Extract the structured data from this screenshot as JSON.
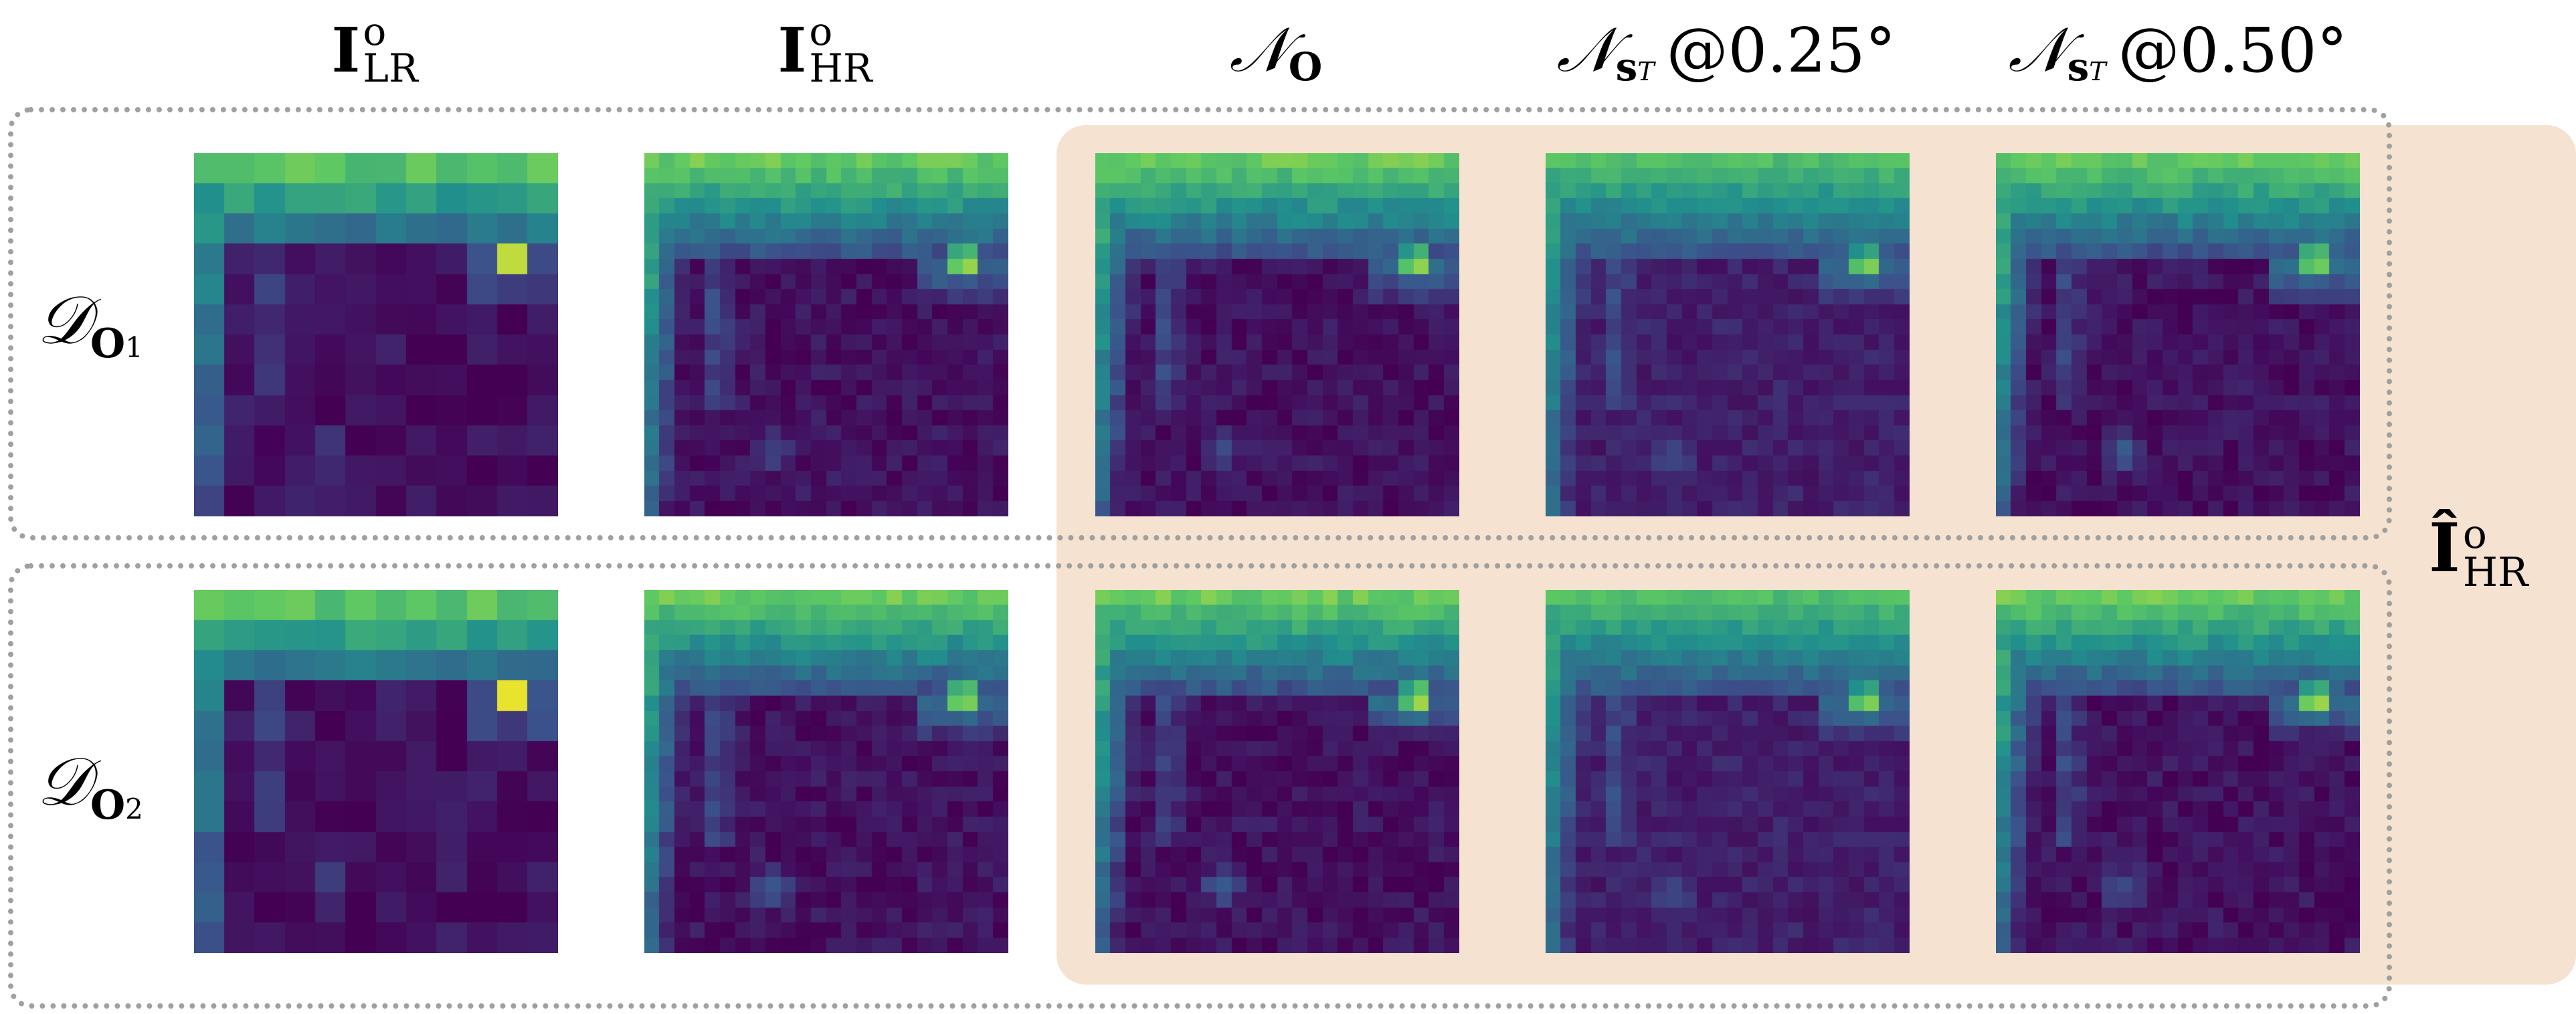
{
  "columns": [
    {
      "main": "I",
      "sup": "o",
      "sub": "LR",
      "style": "bold"
    },
    {
      "main": "I",
      "sup": "o",
      "sub": "HR",
      "style": "bold"
    },
    {
      "main": "𝒩",
      "sub": "O",
      "style": "cal"
    },
    {
      "main": "𝒩",
      "sub": "s",
      "subsub": "T",
      "suffix": "@0.25°",
      "style": "cal"
    },
    {
      "main": "𝒩",
      "sub": "s",
      "subsub": "T",
      "suffix": "@0.50°",
      "style": "cal"
    }
  ],
  "rows": [
    {
      "main": "𝒟",
      "sub": "O",
      "subsub": "1"
    },
    {
      "main": "𝒟",
      "sub": "O",
      "subsub": "2"
    }
  ],
  "right_label": {
    "main": "Î",
    "sup": "o",
    "sub": "HR"
  },
  "colors": {
    "highlight": "#f6e2d0",
    "dashed_border": "#a0a0a0",
    "colormap": [
      "#440154",
      "#3b528b",
      "#21908d",
      "#5dc863",
      "#fde725"
    ]
  },
  "colormap_name": "viridis"
}
